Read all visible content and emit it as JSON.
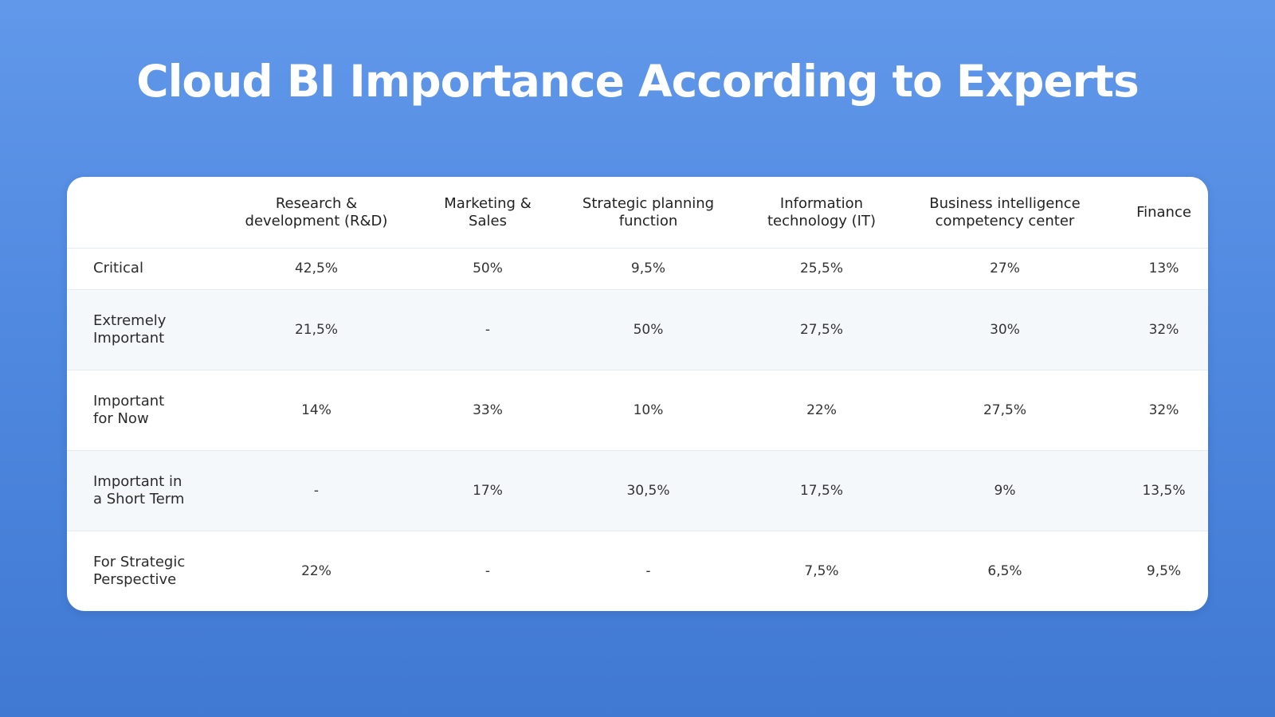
{
  "title": "Cloud BI Importance According to Experts",
  "chart_data": {
    "type": "table",
    "columns": [
      "",
      "Research & development (R&D)",
      "Marketing & Sales",
      "Strategic planning function",
      "Information technology (IT)",
      "Business intelligence competency center",
      "Finance"
    ],
    "rows": [
      {
        "label": "Critical",
        "values": [
          "42,5%",
          "50%",
          "9,5%",
          "25,5%",
          "27%",
          "13%"
        ]
      },
      {
        "label": "Extremely Important",
        "values": [
          "21,5%",
          "-",
          "50%",
          "27,5%",
          "30%",
          "32%"
        ]
      },
      {
        "label": "Important for Now",
        "values": [
          "14%",
          "33%",
          "10%",
          "22%",
          "27,5%",
          "32%"
        ]
      },
      {
        "label": "Important in a Short Term",
        "values": [
          "-",
          "17%",
          "30,5%",
          "17,5%",
          "9%",
          "13,5%"
        ]
      },
      {
        "label": "For Strategic Perspective",
        "values": [
          "22%",
          "-",
          "-",
          "7,5%",
          "6,5%",
          "9,5%"
        ]
      }
    ]
  }
}
